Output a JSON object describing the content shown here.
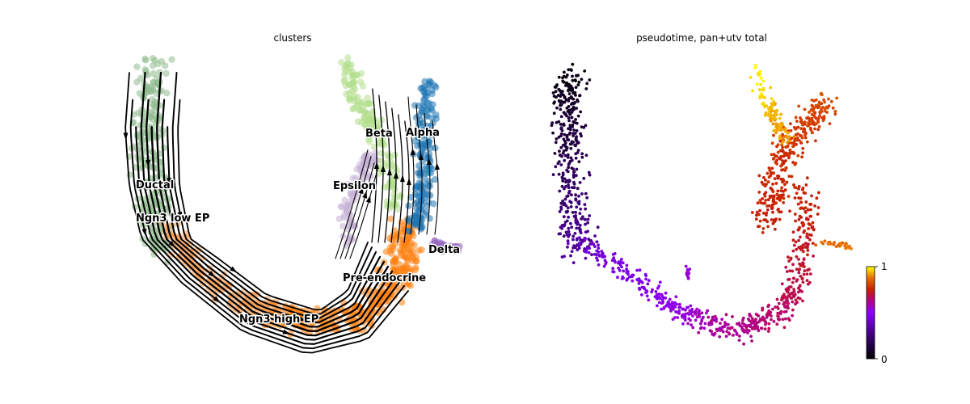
{
  "chart_data": [
    {
      "type": "scatter",
      "title": "clusters",
      "overlay": "velocity streamlines",
      "grid": false,
      "axes_visible": false,
      "categories": [
        "Ductal",
        "Ngn3 low EP",
        "Ngn3 high EP",
        "Pre-endocrine",
        "Beta",
        "Alpha",
        "Epsilon",
        "Delta"
      ],
      "colors": {
        "Ductal": "#8fbc8f",
        "Ngn3 low EP": "#8fbc8f",
        "Ngn3 high EP": "#f8a25c",
        "Pre-endocrine": "#ff7f0e",
        "Beta": "#b3de8c",
        "Alpha": "#1f77b4",
        "Epsilon": "#c5b0d5",
        "Delta": "#9467bd"
      }
    },
    {
      "type": "scatter",
      "title": "pseudotime, pan+utv total",
      "grid": false,
      "axes_visible": false,
      "colormap": "gnuplot",
      "colorbar": {
        "min": 0,
        "max": 1,
        "ticks": [
          "0",
          "1"
        ]
      }
    }
  ]
}
